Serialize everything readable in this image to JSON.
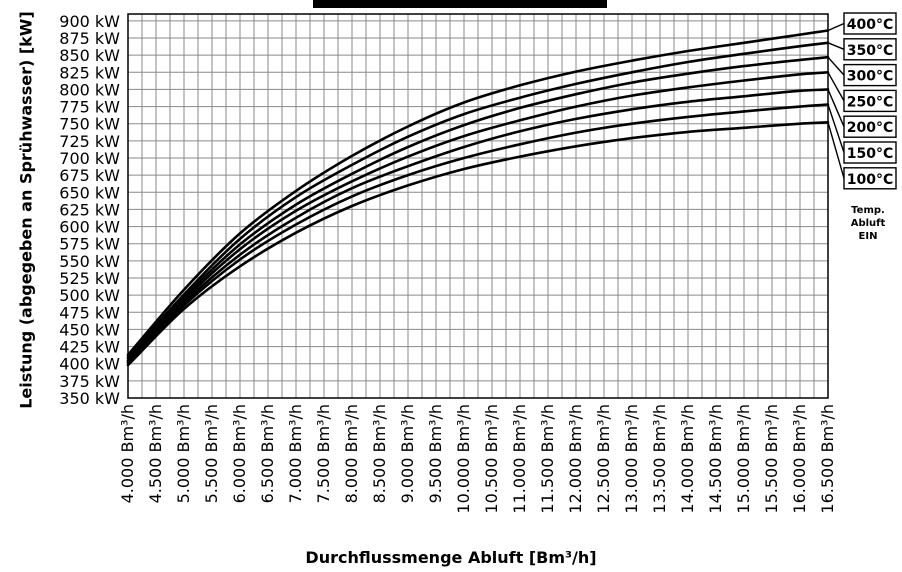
{
  "chart_data": {
    "type": "line",
    "title": "",
    "xlabel": "Durchflussmenge Abluft [Bm³/h]",
    "ylabel": "Leistung (abgegeben an Sprühwasser) [kW]",
    "x": [
      4000,
      5000,
      6000,
      7000,
      8000,
      9000,
      10000,
      11000,
      12000,
      13000,
      14000,
      15000,
      16000,
      16500
    ],
    "xlim": [
      4000,
      16500
    ],
    "ylim": [
      350,
      910
    ],
    "x_ticks": [
      "4.000 Bm³/h",
      "4.500 Bm³/h",
      "5.000 Bm³/h",
      "5.500 Bm³/h",
      "6.000 Bm³/h",
      "6.500 Bm³/h",
      "7.000 Bm³/h",
      "7.500 Bm³/h",
      "8.000 Bm³/h",
      "8.500 Bm³/h",
      "9.000 Bm³/h",
      "9.500 Bm³/h",
      "10.000 Bm³/h",
      "10.500 Bm³/h",
      "11.000 Bm³/h",
      "11.500 Bm³/h",
      "12.000 Bm³/h",
      "12.500 Bm³/h",
      "13.000 Bm³/h",
      "13.500 Bm³/h",
      "14.000 Bm³/h",
      "14.500 Bm³/h",
      "15.000 Bm³/h",
      "15.500 Bm³/h",
      "16.000 Bm³/h",
      "16.500 Bm³/h"
    ],
    "x_tick_values": [
      4000,
      4500,
      5000,
      5500,
      6000,
      6500,
      7000,
      7500,
      8000,
      8500,
      9000,
      9500,
      10000,
      10500,
      11000,
      11500,
      12000,
      12500,
      13000,
      13500,
      14000,
      14500,
      15000,
      15500,
      16000,
      16500
    ],
    "y_ticks": [
      "350 kW",
      "375 kW",
      "400 kW",
      "425 kW",
      "450 kW",
      "475 kW",
      "500 kW",
      "525 kW",
      "550 kW",
      "575 kW",
      "600 kW",
      "625 kW",
      "650 kW",
      "675 kW",
      "700 kW",
      "725 kW",
      "750 kW",
      "775 kW",
      "800 kW",
      "825 kW",
      "850 kW",
      "875 kW",
      "900 kW"
    ],
    "y_tick_values": [
      350,
      375,
      400,
      425,
      450,
      475,
      500,
      525,
      550,
      575,
      600,
      625,
      650,
      675,
      700,
      725,
      750,
      775,
      800,
      825,
      850,
      875,
      900
    ],
    "grid": true,
    "legend_placement": "right",
    "series": [
      {
        "name": "400°C",
        "values": [
          413,
          508,
          590,
          652,
          703,
          746,
          781,
          806,
          826,
          842,
          856,
          868,
          880,
          886
        ]
      },
      {
        "name": "350°C",
        "values": [
          410,
          501,
          582,
          643,
          690,
          731,
          764,
          788,
          808,
          825,
          840,
          852,
          863,
          868
        ]
      },
      {
        "name": "300°C",
        "values": [
          408,
          497,
          574,
          632,
          677,
          716,
          748,
          773,
          793,
          810,
          823,
          834,
          843,
          847
        ]
      },
      {
        "name": "250°C",
        "values": [
          405,
          493,
          567,
          623,
          666,
          702,
          732,
          755,
          775,
          791,
          803,
          813,
          822,
          825
        ]
      },
      {
        "name": "200°C",
        "values": [
          403,
          489,
          559,
          613,
          656,
          688,
          716,
          739,
          757,
          771,
          782,
          790,
          798,
          800
        ]
      },
      {
        "name": "150°C",
        "values": [
          401,
          485,
          552,
          603,
          644,
          675,
          700,
          720,
          737,
          750,
          760,
          768,
          775,
          778
        ]
      },
      {
        "name": "100°C",
        "values": [
          398,
          480,
          542,
          591,
          630,
          660,
          684,
          702,
          717,
          729,
          738,
          744,
          750,
          752
        ]
      }
    ],
    "legend_note": [
      "Temp.",
      "Abluft",
      "EIN"
    ],
    "colors": {
      "line": "#000000",
      "grid": "#8a8a8a",
      "background": "#ffffff"
    }
  }
}
